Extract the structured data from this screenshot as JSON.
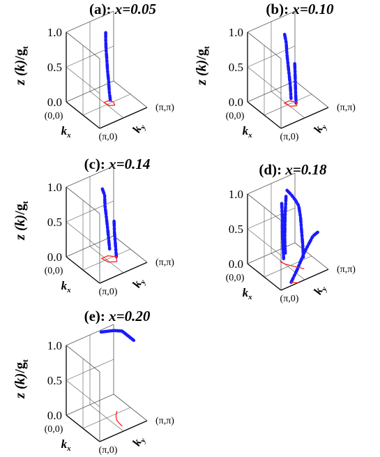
{
  "colors": {
    "blue": "#1a1aff",
    "red": "#ff2a2a",
    "axis": "#000000",
    "grid": "#555555"
  },
  "chart_data": [
    {
      "type": "line",
      "title_prefix": "(a): ",
      "title_math": "x=0.05",
      "zlabel_z": "z",
      "zlabel_k": "(k)",
      "zlabel_g": "/g",
      "zlabel_sub": "t",
      "zticks": [
        "1.0",
        "0.5",
        "0.0"
      ],
      "zlim": [
        0,
        1
      ],
      "xlabel": "k",
      "xlabel_sub": "x",
      "ylabel": "k",
      "ylabel_sub": "y",
      "corner_origin": "(0,0)",
      "corner_x": "(π,0)",
      "corner_y": "(π,π)",
      "series": [
        {
          "color": "blue",
          "style": "dotted",
          "points": [
            [
              0.4,
              0.55,
              0.98
            ],
            [
              0.4,
              0.55,
              0.88
            ],
            [
              0.41,
              0.55,
              0.75
            ],
            [
              0.42,
              0.56,
              0.6
            ],
            [
              0.44,
              0.56,
              0.45
            ],
            [
              0.46,
              0.57,
              0.3
            ],
            [
              0.48,
              0.57,
              0.15
            ],
            [
              0.5,
              0.58,
              0.03
            ]
          ]
        },
        {
          "color": "red",
          "style": "solid",
          "curve": "loop",
          "points": [
            [
              0.42,
              0.5,
              0
            ],
            [
              0.55,
              0.52,
              0
            ],
            [
              0.6,
              0.6,
              0
            ],
            [
              0.5,
              0.64,
              0
            ],
            [
              0.42,
              0.58,
              0
            ],
            [
              0.42,
              0.5,
              0
            ]
          ]
        }
      ]
    },
    {
      "type": "line",
      "title_prefix": "(b): ",
      "title_math": "x=0.10",
      "zlabel_z": "z",
      "zlabel_k": "(k)",
      "zlabel_g": "/g",
      "zlabel_sub": "t",
      "zticks": [
        "1.0",
        "0.5",
        "0.0"
      ],
      "zlim": [
        0,
        1
      ],
      "xlabel": "k",
      "xlabel_sub": "x",
      "ylabel": "k",
      "ylabel_sub": "y",
      "corner_origin": "(0,0)",
      "corner_x": "(π,0)",
      "corner_y": "(π,π)",
      "series": [
        {
          "color": "blue",
          "style": "dotted",
          "points": [
            [
              0.4,
              0.5,
              0.97
            ],
            [
              0.42,
              0.52,
              0.85
            ],
            [
              0.44,
              0.52,
              0.7
            ],
            [
              0.46,
              0.53,
              0.55
            ],
            [
              0.48,
              0.54,
              0.4
            ],
            [
              0.5,
              0.55,
              0.25
            ],
            [
              0.52,
              0.55,
              0.08
            ]
          ]
        },
        {
          "color": "blue",
          "style": "dotted",
          "points": [
            [
              0.56,
              0.6,
              0.58
            ],
            [
              0.57,
              0.6,
              0.45
            ],
            [
              0.58,
              0.6,
              0.3
            ],
            [
              0.59,
              0.6,
              0.15
            ],
            [
              0.6,
              0.6,
              0.03
            ]
          ]
        },
        {
          "color": "red",
          "style": "solid",
          "curve": "loop",
          "points": [
            [
              0.42,
              0.48,
              0
            ],
            [
              0.56,
              0.5,
              0
            ],
            [
              0.62,
              0.6,
              0
            ],
            [
              0.52,
              0.66,
              0
            ],
            [
              0.42,
              0.58,
              0
            ],
            [
              0.42,
              0.48,
              0
            ]
          ]
        }
      ]
    },
    {
      "type": "line",
      "title_prefix": "(c): ",
      "title_math": "x=0.14",
      "zlabel_z": "z",
      "zlabel_k": "(k)",
      "zlabel_g": "/g",
      "zlabel_sub": "t",
      "zticks": [
        "1.0",
        "0.5",
        "0.0"
      ],
      "zlim": [
        0,
        1
      ],
      "xlabel": "k",
      "xlabel_sub": "x",
      "ylabel": "k",
      "ylabel_sub": "y",
      "corner_origin": "(0,0)",
      "corner_x": "(π,0)",
      "corner_y": "(π,π)",
      "series": [
        {
          "color": "blue",
          "style": "dotted",
          "points": [
            [
              0.4,
              0.48,
              0.98
            ],
            [
              0.44,
              0.5,
              0.9
            ],
            [
              0.45,
              0.5,
              0.75
            ],
            [
              0.46,
              0.52,
              0.6
            ],
            [
              0.48,
              0.53,
              0.45
            ],
            [
              0.5,
              0.54,
              0.3
            ],
            [
              0.52,
              0.55,
              0.12
            ]
          ]
        },
        {
          "color": "blue",
          "style": "dotted",
          "points": [
            [
              0.58,
              0.6,
              0.55
            ],
            [
              0.59,
              0.6,
              0.4
            ],
            [
              0.6,
              0.61,
              0.25
            ],
            [
              0.62,
              0.62,
              0.05
            ]
          ]
        },
        {
          "color": "red",
          "style": "solid",
          "curve": "loop",
          "points": [
            [
              0.42,
              0.45,
              0
            ],
            [
              0.58,
              0.48,
              0
            ],
            [
              0.66,
              0.6,
              0
            ],
            [
              0.54,
              0.68,
              0
            ],
            [
              0.42,
              0.58,
              0
            ],
            [
              0.42,
              0.45,
              0
            ]
          ]
        }
      ]
    },
    {
      "type": "line",
      "title_prefix": "(d): ",
      "title_math": "x=0.18",
      "zlabel_z": "",
      "zlabel_k": "",
      "zlabel_g": "",
      "zlabel_sub": "",
      "zticks": [
        "1.0",
        "0.5",
        "0.0"
      ],
      "zlim": [
        0,
        1
      ],
      "xlabel": "k",
      "xlabel_sub": "x",
      "ylabel": "k",
      "ylabel_sub": "y",
      "corner_origin": "(0,0)",
      "corner_x": "(π,0)",
      "corner_y": "(π,π)",
      "series": [
        {
          "color": "blue",
          "style": "dotted",
          "points": [
            [
              0.3,
              0.62,
              0.98
            ],
            [
              0.4,
              0.64,
              0.95
            ],
            [
              0.5,
              0.66,
              0.9
            ],
            [
              0.58,
              0.67,
              0.85
            ],
            [
              0.62,
              0.68,
              0.7
            ],
            [
              0.64,
              0.69,
              0.5
            ],
            [
              0.66,
              0.7,
              0.3
            ],
            [
              0.68,
              0.7,
              0.12
            ]
          ]
        },
        {
          "color": "blue",
          "style": "dotted",
          "points": [
            [
              0.34,
              0.48,
              0.85
            ],
            [
              0.36,
              0.48,
              0.65
            ],
            [
              0.36,
              0.48,
              0.45
            ],
            [
              0.38,
              0.48,
              0.25
            ],
            [
              0.4,
              0.48,
              0.08
            ]
          ]
        },
        {
          "color": "blue",
          "style": "dotted",
          "points": [
            [
              0.3,
              0.6,
              0.9
            ],
            [
              0.3,
              0.58,
              0.6
            ],
            [
              0.32,
              0.56,
              0.3
            ],
            [
              0.35,
              0.55,
              0.12
            ]
          ]
        },
        {
          "color": "blue",
          "style": "dotted",
          "points": [
            [
              0.95,
              0.25,
              0.02
            ],
            [
              0.92,
              0.4,
              0.15
            ],
            [
              0.92,
              0.55,
              0.35
            ],
            [
              0.96,
              0.7,
              0.55
            ],
            [
              1.0,
              0.78,
              0.6
            ]
          ]
        },
        {
          "color": "red",
          "style": "solid",
          "curve": "open",
          "points": [
            [
              0.3,
              0.48,
              0
            ],
            [
              0.4,
              0.5,
              0
            ],
            [
              0.5,
              0.55,
              0
            ],
            [
              0.62,
              0.62,
              0
            ],
            [
              0.72,
              0.68,
              0
            ]
          ]
        },
        {
          "color": "red",
          "style": "solid",
          "curve": "open",
          "points": [
            [
              0.92,
              0.28,
              0
            ],
            [
              0.96,
              0.32,
              0
            ],
            [
              1.0,
              0.36,
              0
            ]
          ]
        }
      ]
    },
    {
      "type": "line",
      "title_prefix": "(e): ",
      "title_math": "x=0.20",
      "zlabel_z": "z",
      "zlabel_k": "(k)",
      "zlabel_g": "/g",
      "zlabel_sub": "t",
      "zticks": [
        "1.0",
        "0.5",
        "0.0"
      ],
      "zlim": [
        0,
        1
      ],
      "xlabel": "k",
      "xlabel_sub": "x",
      "ylabel": "k",
      "ylabel_sub": "y",
      "corner_origin": "(0,0)",
      "corner_x": "(π,0)",
      "corner_y": "(π,π)",
      "series": [
        {
          "color": "blue",
          "style": "solid",
          "points": [
            [
              0.05,
              0.7,
              1.0
            ],
            [
              0.15,
              0.9,
              1.0
            ],
            [
              0.25,
              1.0,
              1.0
            ],
            [
              0.4,
              1.0,
              1.0
            ],
            [
              0.6,
              1.0,
              1.0
            ]
          ]
        },
        {
          "color": "red",
          "style": "solid",
          "curve": "open",
          "points": [
            [
              0.45,
              0.75,
              0
            ],
            [
              0.55,
              0.66,
              0
            ],
            [
              0.66,
              0.6,
              0
            ],
            [
              0.76,
              0.58,
              0
            ],
            [
              0.86,
              0.57,
              0
            ]
          ]
        }
      ]
    }
  ]
}
